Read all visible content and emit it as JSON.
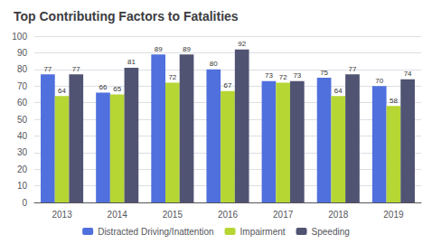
{
  "chart_data": {
    "type": "bar",
    "title": "Top Contributing Factors to Fatalities",
    "categories": [
      "2013",
      "2014",
      "2015",
      "2016",
      "2017",
      "2018",
      "2019"
    ],
    "series": [
      {
        "name": "Distracted Driving/Inattention",
        "values": [
          77,
          66,
          89,
          80,
          73,
          75,
          70
        ]
      },
      {
        "name": "Impairment",
        "values": [
          64,
          65,
          72,
          67,
          72,
          64,
          58
        ]
      },
      {
        "name": "Speeding",
        "values": [
          77,
          81,
          89,
          92,
          73,
          77,
          74
        ]
      }
    ],
    "ylim": [
      0,
      100
    ],
    "yticks": [
      0,
      10,
      20,
      30,
      40,
      50,
      60,
      70,
      80,
      90,
      100
    ],
    "grid": true,
    "legend": "bottom",
    "data_labels": true
  }
}
